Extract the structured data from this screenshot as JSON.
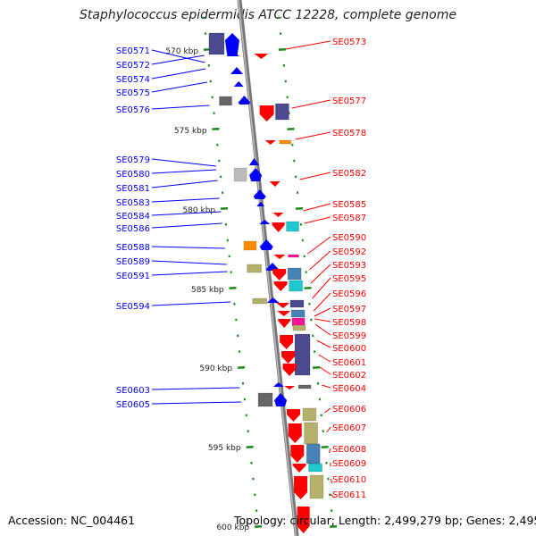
{
  "title": "Staphylococcus epidermidis ATCC 12228, complete genome",
  "footer": {
    "accession": "Accession: NC_004461",
    "topology": "Topology: circular; Length: 2,499,279 bp; Genes: 2,495"
  },
  "ruler_labels": [
    "570 kbp",
    "575 kbp",
    "580 kbp",
    "585 kbp",
    "590 kbp",
    "595 kbp",
    "600 kbp"
  ],
  "forward_genes": [
    "SE0571",
    "SE0572",
    "SE0574",
    "SE0575",
    "SE0576",
    "SE0579",
    "SE0580",
    "SE0581",
    "SE0583",
    "SE0584",
    "SE0586",
    "SE0588",
    "SE0589",
    "SE0591",
    "SE0594",
    "SE0603",
    "SE0605"
  ],
  "reverse_genes": [
    "SE0573",
    "SE0577",
    "SE0578",
    "SE0582",
    "SE0585",
    "SE0587",
    "SE0590",
    "SE0592",
    "SE0593",
    "SE0595",
    "SE0596",
    "SE0597",
    "SE0598",
    "SE0599",
    "SE0600",
    "SE0601",
    "SE0602",
    "SE0604",
    "SE0606",
    "SE0607",
    "SE0608",
    "SE0609",
    "SE0610",
    "SE0611"
  ],
  "colors": {
    "forward": "#0000ff",
    "reverse": "#ff0000",
    "backbone": "#888888",
    "ticks": "#1a8a1a"
  }
}
